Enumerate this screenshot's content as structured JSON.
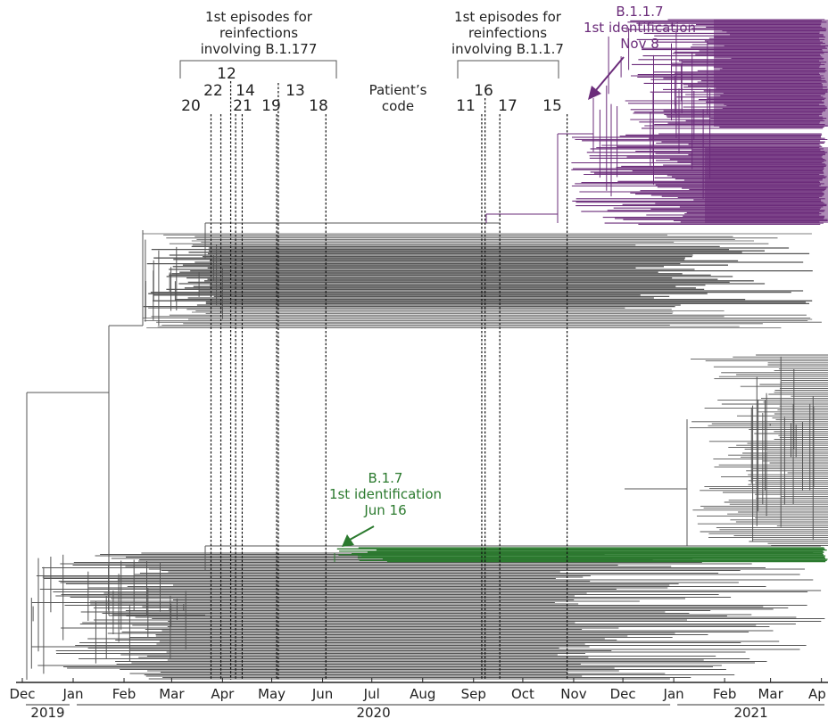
{
  "chart_data": {
    "type": "phylogenetic-tree",
    "x_axis": {
      "months": [
        "Dec",
        "Jan",
        "Feb",
        "Mar",
        "Apr",
        "May",
        "Jun",
        "Jul",
        "Aug",
        "Sep",
        "Oct",
        "Nov",
        "Dec",
        "Jan",
        "Feb",
        "Mar",
        "Ap"
      ],
      "years": [
        "2019",
        "2020",
        "2021"
      ],
      "range": [
        "2019-12-01",
        "2021-04-05"
      ]
    },
    "annotations": {
      "b1177": {
        "text": [
          "1st episodes for",
          "reinfections",
          "involving B.1.177"
        ]
      },
      "b117": {
        "text": [
          "1st episodes for",
          "reinfections",
          "involving B.1.1.7"
        ]
      },
      "patient_code": [
        "Patient’s",
        "code"
      ],
      "b117_first": {
        "lines": [
          "B.1.1.7",
          "1st identification",
          "Nov 8"
        ],
        "color": "#6b2c7a"
      },
      "b17_first": {
        "lines": [
          "B.1.7",
          "1st identification",
          "Jun 16"
        ],
        "color": "#2b7a2e"
      }
    },
    "reinfection_first_episodes": [
      {
        "code": "20",
        "date": "2020-03-25",
        "lineage": "B.1.177"
      },
      {
        "code": "22",
        "date": "2020-03-31",
        "lineage": "B.1.177"
      },
      {
        "code": "12",
        "date": "2020-04-06",
        "lineage": "B.1.177"
      },
      {
        "code": "14",
        "date": "2020-04-09",
        "lineage": "B.1.177"
      },
      {
        "code": "21",
        "date": "2020-04-13",
        "lineage": "B.1.177"
      },
      {
        "code": "19",
        "date": "2020-05-04",
        "lineage": "B.1.177"
      },
      {
        "code": "13",
        "date": "2020-05-05",
        "lineage": "B.1.177"
      },
      {
        "code": "18",
        "date": "2020-06-03",
        "lineage": "B.1.177"
      },
      {
        "code": "11",
        "date": "2020-09-06",
        "lineage": "B.1.1.7"
      },
      {
        "code": "16",
        "date": "2020-09-08",
        "lineage": "B.1.1.7"
      },
      {
        "code": "17",
        "date": "2020-09-17",
        "lineage": "B.1.1.7"
      },
      {
        "code": "15",
        "date": "2020-10-28",
        "lineage": "B.1.1.7"
      }
    ],
    "clade_colors": {
      "B.1.1.7": "#6b2c7a",
      "B.1.7": "#2b7a2e",
      "other": "#555555"
    },
    "grid": false
  }
}
